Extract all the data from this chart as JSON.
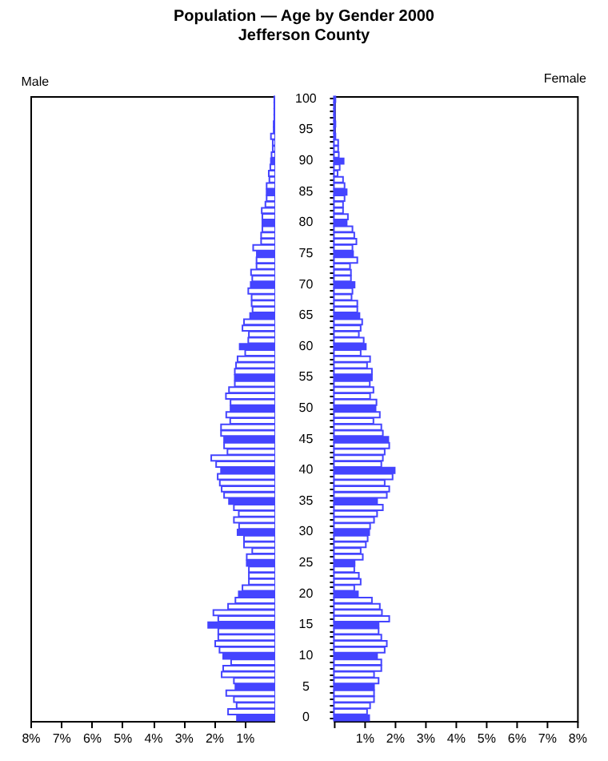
{
  "chart_data": [
    {
      "type": "bar",
      "title": "Population — Age by Gender 2000",
      "subtitle": "Jefferson County",
      "orientation": "horizontal",
      "tick_labels": "x",
      "categories": [
        "100",
        null,
        null,
        null,
        null,
        "95",
        null,
        null,
        null,
        null,
        "90",
        null,
        null,
        null,
        null,
        "85",
        null,
        null,
        null,
        null,
        "80",
        null,
        null,
        null,
        null,
        "75",
        null,
        null,
        null,
        null,
        "70",
        null,
        null,
        null,
        null,
        "65",
        null,
        null,
        null,
        null,
        "60",
        null,
        null,
        null,
        null,
        "55",
        null,
        null,
        null,
        null,
        "50",
        null,
        null,
        null,
        null,
        "45",
        null,
        null,
        null,
        null,
        "40",
        null,
        null,
        null,
        null,
        "35",
        null,
        null,
        null,
        null,
        "30",
        null,
        null,
        null,
        null,
        "25",
        null,
        null,
        null,
        null,
        "20",
        null,
        null,
        null,
        null,
        "15",
        null,
        null,
        null,
        null,
        "10",
        null,
        null,
        null,
        null,
        "5",
        null,
        null,
        null,
        null,
        "0"
      ],
      "xlim": [
        8,
        0
      ],
      "xticks": [
        {
          "value": 8,
          "label": "8%"
        },
        {
          "value": 7,
          "label": "7%"
        },
        {
          "value": 6,
          "label": "6%"
        },
        {
          "value": 5,
          "label": "5%"
        },
        {
          "value": 4,
          "label": "4%"
        },
        {
          "value": 3,
          "label": "3%"
        },
        {
          "value": 2,
          "label": "2%"
        },
        {
          "value": 1,
          "label": "1%"
        },
        {
          "value": 0,
          "label": null
        }
      ],
      "series": [
        {
          "name": "Male",
          "color": "#4444ff",
          "colors": [
            "#4444ff",
            "#ffffff",
            "#ffffff",
            "#ffffff",
            "#ffffff",
            "#4444ff",
            "#ffffff",
            "#ffffff",
            "#ffffff",
            "#ffffff",
            "#4444ff",
            "#ffffff",
            "#ffffff",
            "#ffffff",
            "#ffffff",
            "#4444ff",
            "#ffffff",
            "#ffffff",
            "#ffffff",
            "#ffffff",
            "#4444ff",
            "#ffffff",
            "#ffffff",
            "#ffffff",
            "#ffffff",
            "#4444ff",
            "#ffffff",
            "#ffffff",
            "#ffffff",
            "#ffffff",
            "#4444ff",
            "#ffffff",
            "#ffffff",
            "#ffffff",
            "#ffffff",
            "#4444ff",
            "#ffffff",
            "#ffffff",
            "#ffffff",
            "#ffffff",
            "#4444ff",
            "#ffffff",
            "#ffffff",
            "#ffffff",
            "#ffffff",
            "#4444ff",
            "#ffffff",
            "#ffffff",
            "#ffffff",
            "#ffffff",
            "#4444ff",
            "#ffffff",
            "#ffffff",
            "#ffffff",
            "#ffffff",
            "#4444ff",
            "#ffffff",
            "#ffffff",
            "#ffffff",
            "#ffffff",
            "#4444ff",
            "#ffffff",
            "#ffffff",
            "#ffffff",
            "#ffffff",
            "#4444ff",
            "#ffffff",
            "#ffffff",
            "#ffffff",
            "#ffffff",
            "#4444ff",
            "#ffffff",
            "#ffffff",
            "#ffffff",
            "#ffffff",
            "#4444ff",
            "#ffffff",
            "#ffffff",
            "#ffffff",
            "#ffffff",
            "#4444ff",
            "#ffffff",
            "#ffffff",
            "#ffffff",
            "#ffffff",
            "#4444ff",
            "#ffffff",
            "#ffffff",
            "#ffffff",
            "#ffffff",
            "#4444ff",
            "#ffffff",
            "#ffffff",
            "#ffffff",
            "#ffffff",
            "#4444ff",
            "#ffffff",
            "#ffffff",
            "#ffffff",
            "#ffffff",
            "#4444ff"
          ],
          "values": [
            0.03,
            0.03,
            0.03,
            0.03,
            0.05,
            0.05,
            0.14,
            0.08,
            0.08,
            0.12,
            0.14,
            0.16,
            0.21,
            0.19,
            0.28,
            0.28,
            0.28,
            0.32,
            0.44,
            0.42,
            0.42,
            0.42,
            0.46,
            0.46,
            0.72,
            0.6,
            0.61,
            0.61,
            0.79,
            0.75,
            0.8,
            0.88,
            0.77,
            0.77,
            0.74,
            0.82,
            1.02,
            1.07,
            0.86,
            0.88,
            1.16,
            0.98,
            1.23,
            1.28,
            1.32,
            1.32,
            1.32,
            1.51,
            1.61,
            1.46,
            1.46,
            1.6,
            1.47,
            1.77,
            1.77,
            1.67,
            1.67,
            1.56,
            2.09,
            1.93,
            1.77,
            1.88,
            1.81,
            1.75,
            1.67,
            1.51,
            1.35,
            1.19,
            1.35,
            1.18,
            1.23,
            1.02,
            1.02,
            0.75,
            0.93,
            0.93,
            0.86,
            0.86,
            0.86,
            1.07,
            1.19,
            1.3,
            1.54,
            2.02,
            1.86,
            2.19,
            1.86,
            1.86,
            1.96,
            1.82,
            1.7,
            1.44,
            1.7,
            1.75,
            1.35,
            1.3,
            1.6,
            1.35,
            1.26,
            1.54,
            1.25
          ]
        }
      ]
    },
    {
      "type": "bar",
      "orientation": "horizontal",
      "categories": [
        "100",
        null,
        null,
        null,
        null,
        "95",
        null,
        null,
        null,
        null,
        "90",
        null,
        null,
        null,
        null,
        "85",
        null,
        null,
        null,
        null,
        "80",
        null,
        null,
        null,
        null,
        "75",
        null,
        null,
        null,
        null,
        "70",
        null,
        null,
        null,
        null,
        "65",
        null,
        null,
        null,
        null,
        "60",
        null,
        null,
        null,
        null,
        "55",
        null,
        null,
        null,
        null,
        "50",
        null,
        null,
        null,
        null,
        "45",
        null,
        null,
        null,
        null,
        "40",
        null,
        null,
        null,
        null,
        "35",
        null,
        null,
        null,
        null,
        "30",
        null,
        null,
        null,
        null,
        "25",
        null,
        null,
        null,
        null,
        "20",
        null,
        null,
        null,
        null,
        "15",
        null,
        null,
        null,
        null,
        "10",
        null,
        null,
        null,
        null,
        "5",
        null,
        null,
        null,
        null,
        "0"
      ],
      "xlim": [
        0,
        8
      ],
      "xticks": [
        {
          "value": 0,
          "label": null
        },
        {
          "value": 1,
          "label": "1%"
        },
        {
          "value": 2,
          "label": "2%"
        },
        {
          "value": 3,
          "label": "3%"
        },
        {
          "value": 4,
          "label": "4%"
        },
        {
          "value": 5,
          "label": "5%"
        },
        {
          "value": 6,
          "label": "6%"
        },
        {
          "value": 7,
          "label": "7%"
        },
        {
          "value": 8,
          "label": "8%"
        }
      ],
      "series": [
        {
          "name": "Female",
          "color": "#4444ff",
          "colors": [
            "#4444ff",
            "#ffffff",
            "#ffffff",
            "#ffffff",
            "#ffffff",
            "#4444ff",
            "#ffffff",
            "#ffffff",
            "#ffffff",
            "#ffffff",
            "#4444ff",
            "#ffffff",
            "#ffffff",
            "#ffffff",
            "#ffffff",
            "#4444ff",
            "#ffffff",
            "#ffffff",
            "#ffffff",
            "#ffffff",
            "#4444ff",
            "#ffffff",
            "#ffffff",
            "#ffffff",
            "#ffffff",
            "#4444ff",
            "#ffffff",
            "#ffffff",
            "#ffffff",
            "#ffffff",
            "#4444ff",
            "#ffffff",
            "#ffffff",
            "#ffffff",
            "#ffffff",
            "#4444ff",
            "#ffffff",
            "#ffffff",
            "#ffffff",
            "#ffffff",
            "#4444ff",
            "#ffffff",
            "#ffffff",
            "#ffffff",
            "#ffffff",
            "#4444ff",
            "#ffffff",
            "#ffffff",
            "#ffffff",
            "#ffffff",
            "#4444ff",
            "#ffffff",
            "#ffffff",
            "#ffffff",
            "#ffffff",
            "#4444ff",
            "#ffffff",
            "#ffffff",
            "#ffffff",
            "#ffffff",
            "#4444ff",
            "#ffffff",
            "#ffffff",
            "#ffffff",
            "#ffffff",
            "#4444ff",
            "#ffffff",
            "#ffffff",
            "#ffffff",
            "#ffffff",
            "#4444ff",
            "#ffffff",
            "#ffffff",
            "#ffffff",
            "#ffffff",
            "#4444ff",
            "#ffffff",
            "#ffffff",
            "#ffffff",
            "#ffffff",
            "#4444ff",
            "#ffffff",
            "#ffffff",
            "#ffffff",
            "#ffffff",
            "#4444ff",
            "#ffffff",
            "#ffffff",
            "#ffffff",
            "#ffffff",
            "#4444ff",
            "#ffffff",
            "#ffffff",
            "#ffffff",
            "#ffffff",
            "#4444ff",
            "#ffffff",
            "#ffffff",
            "#ffffff",
            "#ffffff",
            "#4444ff"
          ],
          "values": [
            0.05,
            0.03,
            0.03,
            0.03,
            0.05,
            0.03,
            0.05,
            0.14,
            0.14,
            0.16,
            0.32,
            0.19,
            0.12,
            0.3,
            0.35,
            0.42,
            0.35,
            0.3,
            0.3,
            0.46,
            0.42,
            0.61,
            0.67,
            0.74,
            0.61,
            0.63,
            0.77,
            0.53,
            0.56,
            0.56,
            0.68,
            0.61,
            0.58,
            0.77,
            0.77,
            0.84,
            0.93,
            0.88,
            0.82,
            0.98,
            1.05,
            0.88,
            1.19,
            1.09,
            1.25,
            1.25,
            1.18,
            1.3,
            1.19,
            1.4,
            1.37,
            1.51,
            1.3,
            1.56,
            1.61,
            1.79,
            1.82,
            1.67,
            1.61,
            1.56,
            2.0,
            1.93,
            1.67,
            1.82,
            1.74,
            1.42,
            1.61,
            1.42,
            1.32,
            1.19,
            1.16,
            1.11,
            1.05,
            0.88,
            0.95,
            0.68,
            0.67,
            0.82,
            0.88,
            0.67,
            0.79,
            1.25,
            1.51,
            1.58,
            1.82,
            1.47,
            1.47,
            1.56,
            1.74,
            1.67,
            1.42,
            1.56,
            1.56,
            1.32,
            1.47,
            1.32,
            1.32,
            1.32,
            1.19,
            1.09,
            1.16
          ]
        }
      ]
    }
  ]
}
